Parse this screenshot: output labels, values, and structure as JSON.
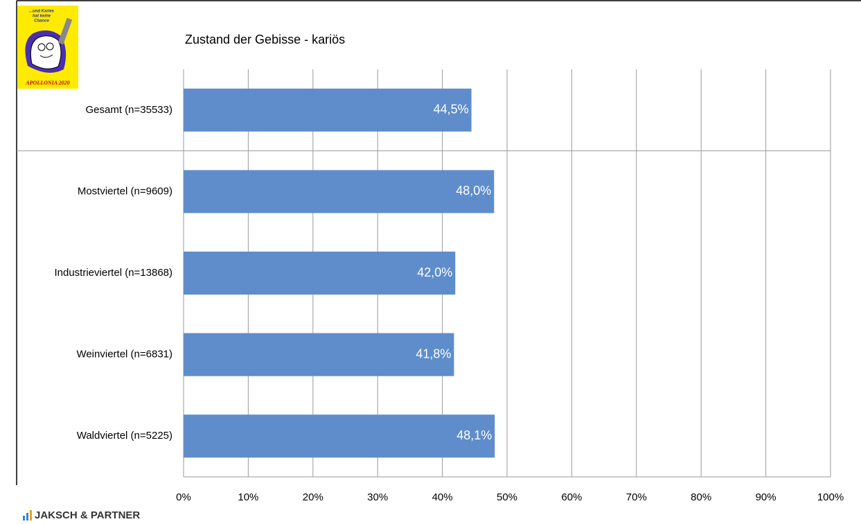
{
  "logo": {
    "slogan": [
      "...und Karies",
      "hat keine",
      "Chance"
    ],
    "name": "APOLLONIA 2020"
  },
  "footer": {
    "brand": "JAKSCH & PARTNER"
  },
  "chart_data": {
    "type": "bar",
    "orientation": "horizontal",
    "title": "Zustand der Gebisse - kariös",
    "categories": [
      "Gesamt (n=35533)",
      "Mostviertel (n=9609)",
      "Industrieviertel (n=13868)",
      "Weinviertel (n=6831)",
      "Waldviertel (n=5225)"
    ],
    "values": [
      44.5,
      48.0,
      42.0,
      41.8,
      48.1
    ],
    "value_labels": [
      "44,5%",
      "48,0%",
      "42,0%",
      "41,8%",
      "48,1%"
    ],
    "color": "#5f8dcb",
    "xlim": [
      0,
      100
    ],
    "xticks": [
      {
        "value": 0,
        "label": "0%"
      },
      {
        "value": 10,
        "label": "10%"
      },
      {
        "value": 20,
        "label": "20%"
      },
      {
        "value": 30,
        "label": "30%"
      },
      {
        "value": 40,
        "label": "40%"
      },
      {
        "value": 50,
        "label": "50%"
      },
      {
        "value": 60,
        "label": "60%"
      },
      {
        "value": 70,
        "label": "70%"
      },
      {
        "value": 80,
        "label": "80%"
      },
      {
        "value": 90,
        "label": "90%"
      },
      {
        "value": 100,
        "label": "100%"
      }
    ],
    "grid": true
  }
}
